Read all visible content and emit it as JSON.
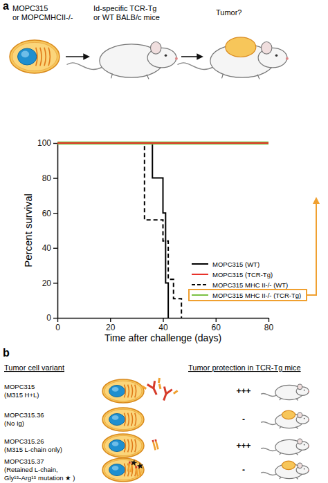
{
  "panel_labels": [
    "a",
    "b"
  ],
  "schematic": {
    "cell_label": [
      "MOPC315",
      "or MOPCMHCII-/-"
    ],
    "mouse_label": [
      "Id-specific TCR-Tg",
      "or WT BALB/c mice"
    ],
    "outcome_label": "Tumor?"
  },
  "chart_data": {
    "type": "step",
    "xlabel": "Time after challenge (days)",
    "ylabel": "Percent survival",
    "xlim": [
      0,
      80
    ],
    "ylim": [
      0,
      100
    ],
    "xticks": [
      0,
      20,
      40,
      60,
      80
    ],
    "yticks": [
      0,
      20,
      40,
      60,
      80,
      100
    ],
    "legend": "right",
    "series": [
      {
        "name": "MOPC315 (WT)",
        "color": "#000000",
        "line_style": "solid",
        "x": [
          0,
          36,
          40,
          41,
          42
        ],
        "values": [
          100,
          80,
          60,
          20,
          0
        ]
      },
      {
        "name": "MOPC315 (TCR-Tg)",
        "color": "#e8322a",
        "line_style": "solid",
        "x": [
          0,
          80
        ],
        "values": [
          100,
          100
        ]
      },
      {
        "name": "MOPC315 MHC II-/- (WT)",
        "color": "#000000",
        "line_style": "dashed",
        "x": [
          0,
          33,
          40,
          42,
          44,
          47
        ],
        "values": [
          100,
          56,
          44,
          22,
          11,
          0
        ]
      },
      {
        "name": "MOPC315 MHC II-/- (TCR-Tg)",
        "color": "#7ac143",
        "line_style": "solid",
        "x": [
          0,
          80
        ],
        "values": [
          100,
          100
        ]
      }
    ]
  },
  "table": {
    "headers": [
      "Tumor cell variant",
      "Tumor protection in TCR-Tg mice"
    ],
    "rows": [
      {
        "variant": [
          "MOPC315",
          "(M315 H+L)"
        ],
        "protection": "+++"
      },
      {
        "variant": [
          "MOPC315.36",
          "(No Ig)"
        ],
        "protection": "-"
      },
      {
        "variant": [
          "MOPC315.26",
          "(M315 L-chain only)"
        ],
        "protection": "+++"
      },
      {
        "variant": [
          "MOPC315.37",
          "(Retained L-chain,",
          "Gly¹⁵-Arg¹⁵ mutation ★ )"
        ],
        "protection": "-"
      }
    ]
  }
}
